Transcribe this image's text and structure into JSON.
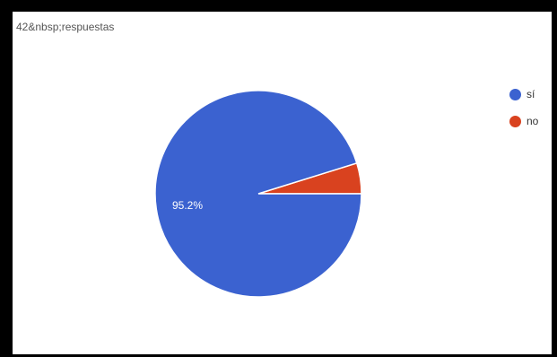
{
  "header": {
    "response_count": "42&nbsp;respuestas"
  },
  "colors": {
    "si": "#3b62d0",
    "no": "#d9421f",
    "label_text": "#ffffff"
  },
  "chart_data": {
    "type": "pie",
    "title": "",
    "legend_position": "right",
    "slices": [
      {
        "label": "sí",
        "value": 95.2,
        "color": "#3b62d0",
        "data_label": "95.2%"
      },
      {
        "label": "no",
        "value": 4.8,
        "color": "#d9421f",
        "data_label": ""
      }
    ]
  }
}
